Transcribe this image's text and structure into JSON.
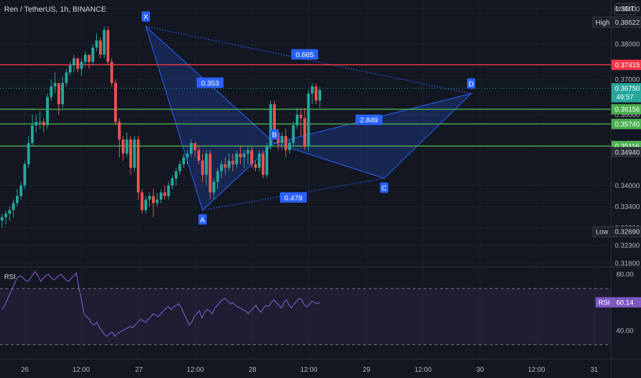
{
  "header": {
    "title": "Ren / TetherUS, 1h, BINANCE",
    "currency": "USDT",
    "rsi_title": "RSI"
  },
  "colors": {
    "background": "#131722",
    "grid": "#1e222d",
    "up": "#26a69a",
    "down": "#ef5350",
    "pattern_fill": "#2962ff",
    "pattern_label": "#2962ff",
    "rsi_line": "#7e57c2",
    "red_line": "#f23645",
    "green_line": "#4caf50"
  },
  "chart_data": [
    {
      "type": "candlestick",
      "title": "Ren / TetherUS, 1h, BINANCE",
      "x_tick_labels": [
        "26",
        "12:00",
        "27",
        "12:00",
        "28",
        "12:00",
        "29",
        "12:00",
        "30",
        "12:00",
        "31"
      ],
      "y_tick_labels": [
        "0.39000",
        "0.38000",
        "0.37000",
        "0.36000",
        "0.34000",
        "0.33400",
        "0.32800",
        "0.32300",
        "0.31800"
      ],
      "ylim": [
        0.317,
        0.3925
      ],
      "ohlc": [
        [
          0.33,
          0.332,
          0.328,
          0.331
        ],
        [
          0.331,
          0.333,
          0.329,
          0.332
        ],
        [
          0.332,
          0.334,
          0.33,
          0.333
        ],
        [
          0.333,
          0.336,
          0.331,
          0.335
        ],
        [
          0.335,
          0.339,
          0.334,
          0.337
        ],
        [
          0.337,
          0.341,
          0.336,
          0.34
        ],
        [
          0.34,
          0.347,
          0.339,
          0.346
        ],
        [
          0.346,
          0.354,
          0.345,
          0.352
        ],
        [
          0.352,
          0.36,
          0.351,
          0.357
        ],
        [
          0.357,
          0.36,
          0.355,
          0.358
        ],
        [
          0.358,
          0.361,
          0.356,
          0.358
        ],
        [
          0.358,
          0.359,
          0.355,
          0.357
        ],
        [
          0.357,
          0.366,
          0.356,
          0.365
        ],
        [
          0.365,
          0.37,
          0.364,
          0.368
        ],
        [
          0.368,
          0.372,
          0.366,
          0.369
        ],
        [
          0.369,
          0.369,
          0.36,
          0.363
        ],
        [
          0.363,
          0.371,
          0.362,
          0.369
        ],
        [
          0.369,
          0.373,
          0.368,
          0.372
        ],
        [
          0.372,
          0.375,
          0.371,
          0.374
        ],
        [
          0.374,
          0.377,
          0.372,
          0.376
        ],
        [
          0.376,
          0.376,
          0.372,
          0.373
        ],
        [
          0.373,
          0.376,
          0.371,
          0.375
        ],
        [
          0.375,
          0.378,
          0.374,
          0.377
        ],
        [
          0.377,
          0.377,
          0.373,
          0.375
        ],
        [
          0.375,
          0.38,
          0.374,
          0.379
        ],
        [
          0.379,
          0.383,
          0.378,
          0.381
        ],
        [
          0.381,
          0.382,
          0.376,
          0.377
        ],
        [
          0.377,
          0.385,
          0.376,
          0.384
        ],
        [
          0.384,
          0.385,
          0.374,
          0.375
        ],
        [
          0.375,
          0.376,
          0.368,
          0.369
        ],
        [
          0.369,
          0.37,
          0.357,
          0.358
        ],
        [
          0.358,
          0.359,
          0.348,
          0.353
        ],
        [
          0.353,
          0.354,
          0.347,
          0.349
        ],
        [
          0.349,
          0.355,
          0.348,
          0.353
        ],
        [
          0.353,
          0.354,
          0.343,
          0.345
        ],
        [
          0.345,
          0.354,
          0.344,
          0.353
        ],
        [
          0.353,
          0.354,
          0.336,
          0.338
        ],
        [
          0.338,
          0.339,
          0.332,
          0.333
        ],
        [
          0.333,
          0.337,
          0.332,
          0.336
        ],
        [
          0.336,
          0.338,
          0.334,
          0.337
        ],
        [
          0.337,
          0.339,
          0.331,
          0.335
        ],
        [
          0.335,
          0.338,
          0.334,
          0.336
        ],
        [
          0.336,
          0.339,
          0.335,
          0.338
        ],
        [
          0.338,
          0.34,
          0.336,
          0.337
        ],
        [
          0.337,
          0.341,
          0.336,
          0.34
        ],
        [
          0.34,
          0.343,
          0.339,
          0.342
        ],
        [
          0.342,
          0.345,
          0.34,
          0.344
        ],
        [
          0.344,
          0.347,
          0.343,
          0.346
        ],
        [
          0.346,
          0.349,
          0.345,
          0.348
        ],
        [
          0.348,
          0.35,
          0.346,
          0.349
        ],
        [
          0.349,
          0.353,
          0.348,
          0.352
        ],
        [
          0.352,
          0.352,
          0.348,
          0.35
        ],
        [
          0.35,
          0.351,
          0.346,
          0.347
        ],
        [
          0.347,
          0.349,
          0.341,
          0.343
        ],
        [
          0.343,
          0.35,
          0.34,
          0.349
        ],
        [
          0.349,
          0.35,
          0.336,
          0.338
        ],
        [
          0.338,
          0.342,
          0.336,
          0.341
        ],
        [
          0.341,
          0.345,
          0.339,
          0.344
        ],
        [
          0.344,
          0.347,
          0.342,
          0.346
        ],
        [
          0.346,
          0.348,
          0.343,
          0.345
        ],
        [
          0.345,
          0.349,
          0.344,
          0.347
        ],
        [
          0.347,
          0.349,
          0.344,
          0.346
        ],
        [
          0.346,
          0.35,
          0.345,
          0.349
        ],
        [
          0.349,
          0.351,
          0.346,
          0.348
        ],
        [
          0.348,
          0.35,
          0.345,
          0.349
        ],
        [
          0.349,
          0.351,
          0.346,
          0.35
        ],
        [
          0.35,
          0.351,
          0.345,
          0.346
        ],
        [
          0.346,
          0.347,
          0.344,
          0.345
        ],
        [
          0.345,
          0.35,
          0.344,
          0.349
        ],
        [
          0.349,
          0.35,
          0.342,
          0.343
        ],
        [
          0.343,
          0.352,
          0.342,
          0.351
        ],
        [
          0.351,
          0.364,
          0.35,
          0.363
        ],
        [
          0.363,
          0.364,
          0.353,
          0.355
        ],
        [
          0.355,
          0.356,
          0.35,
          0.352
        ],
        [
          0.352,
          0.355,
          0.35,
          0.354
        ],
        [
          0.354,
          0.356,
          0.348,
          0.35
        ],
        [
          0.35,
          0.353,
          0.349,
          0.352
        ],
        [
          0.352,
          0.358,
          0.351,
          0.357
        ],
        [
          0.357,
          0.362,
          0.356,
          0.36
        ],
        [
          0.36,
          0.362,
          0.354,
          0.359
        ],
        [
          0.359,
          0.362,
          0.35,
          0.351
        ],
        [
          0.351,
          0.367,
          0.35,
          0.366
        ],
        [
          0.366,
          0.369,
          0.363,
          0.368
        ],
        [
          0.368,
          0.369,
          0.363,
          0.364
        ],
        [
          0.364,
          0.368,
          0.362,
          0.367
        ]
      ],
      "horizontal_levels": [
        {
          "value": 0.37415,
          "label": "0.37415",
          "color": "#f23645"
        },
        {
          "value": 0.36156,
          "label": "0.36156",
          "color": "#4caf50"
        },
        {
          "value": 0.3574,
          "label": "0.35740",
          "color": "#4caf50"
        },
        {
          "value": 0.35116,
          "label": "0.35116",
          "color": "#4caf50"
        }
      ],
      "price_tags": [
        {
          "label": "High",
          "value": "0.38622",
          "y": 0.38622
        },
        {
          "label": "",
          "value": "0.36750",
          "y": 0.3675,
          "countdown": "49:57"
        },
        {
          "label": "",
          "value": "0.34940",
          "y": 0.3494
        },
        {
          "label": "Low",
          "value": "0.32690",
          "y": 0.3269
        }
      ],
      "harmonic_pattern": {
        "points": [
          {
            "name": "X",
            "bar": 38,
            "price": 0.385
          },
          {
            "name": "A",
            "bar": 53,
            "price": 0.333
          },
          {
            "name": "B",
            "bar": 72,
            "price": 0.352
          },
          {
            "name": "C",
            "bar": 101,
            "price": 0.342
          },
          {
            "name": "D",
            "bar": 124,
            "price": 0.366
          }
        ],
        "ratios": [
          {
            "label": "0.353",
            "bar": 55,
            "price": 0.369
          },
          {
            "label": "0.665",
            "bar": 80,
            "price": 0.377
          },
          {
            "label": "0.479",
            "bar": 77,
            "price": 0.3365
          },
          {
            "label": "2.849",
            "bar": 97,
            "price": 0.3585
          }
        ]
      }
    },
    {
      "type": "line",
      "title": "RSI",
      "y_tick_labels": [
        "80.00",
        "40.00"
      ],
      "ylim": [
        20,
        85
      ],
      "bands": [
        70,
        30
      ],
      "current_label": "RSI",
      "current_value": "60.14",
      "values": [
        55,
        58,
        62,
        66,
        70,
        74,
        78,
        79,
        78,
        76,
        75,
        77,
        80,
        82,
        79,
        75,
        77,
        79,
        80,
        78,
        76,
        77,
        79,
        80,
        78,
        76,
        75,
        77,
        79,
        81,
        70,
        62,
        52,
        50,
        48,
        45,
        44,
        46,
        42,
        40,
        37,
        36,
        38,
        39,
        36,
        38,
        39,
        40,
        41,
        42,
        43,
        42,
        44,
        46,
        48,
        47,
        46,
        48,
        50,
        52,
        51,
        50,
        52,
        54,
        56,
        57,
        55,
        57,
        58,
        59,
        56,
        52,
        48,
        44,
        46,
        50,
        52,
        54,
        49,
        53,
        55,
        54,
        52,
        56,
        58,
        60,
        62,
        63,
        61,
        59,
        60,
        58,
        57,
        56,
        55,
        54,
        52,
        54,
        56,
        58,
        55,
        53,
        56,
        58,
        57,
        60,
        62,
        60,
        58,
        56,
        60,
        62,
        58,
        56,
        59,
        61,
        63,
        62,
        58,
        57,
        59,
        61,
        60,
        59,
        60.14
      ]
    }
  ]
}
